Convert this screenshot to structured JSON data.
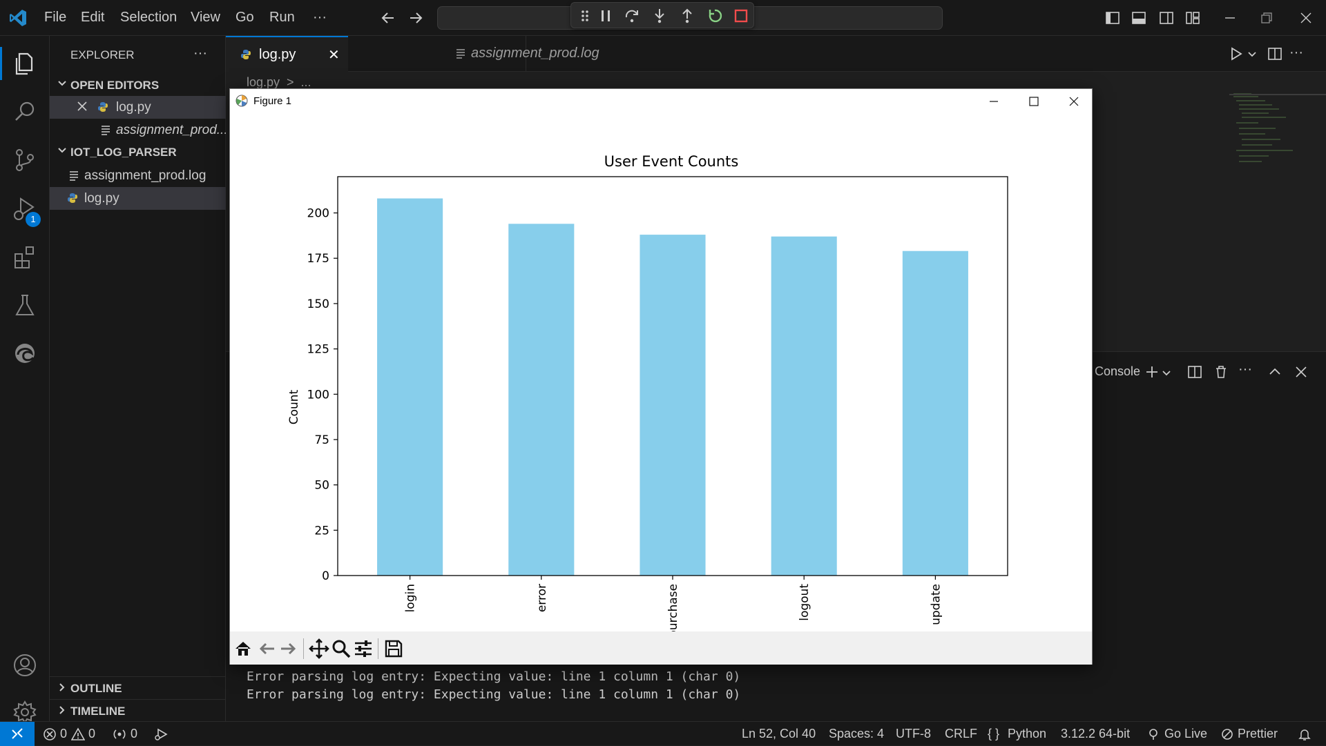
{
  "menu": [
    "File",
    "Edit",
    "Selection",
    "View",
    "Go",
    "Run",
    "···"
  ],
  "activity_badge": "1",
  "sidebar": {
    "title": "EXPLORER",
    "more": "···",
    "open_editors_title": "OPEN EDITORS",
    "open_editors": [
      "log.py",
      "assignment_prod..."
    ],
    "folder_title": "IOT_LOG_PARSER",
    "files": [
      "assignment_prod.log",
      "log.py"
    ],
    "outline": "OUTLINE",
    "timeline": "TIMELINE"
  },
  "tabs": [
    {
      "label": "log.py",
      "close": "✕"
    },
    {
      "label": "assignment_prod.log"
    }
  ],
  "breadcrumb": "log.py  >  ...",
  "panel": {
    "console_label": "Console",
    "lines": [
      "Error parsing log entry: Expecting value: line 1 column 1 (char 0)",
      "Error parsing log entry: Expecting value: line 1 column 1 (char 0)"
    ]
  },
  "figure": {
    "window_title": "Figure 1"
  },
  "chart_data": {
    "type": "bar",
    "title": "User Event Counts",
    "xlabel": "",
    "ylabel": "Count",
    "categories": [
      "login",
      "error",
      "purchase",
      "logout",
      "update"
    ],
    "values": [
      208,
      194,
      188,
      187,
      179
    ],
    "ylim": [
      0,
      220
    ],
    "yticks": [
      0,
      25,
      50,
      75,
      100,
      125,
      150,
      175,
      200
    ],
    "bar_color": "#87ceeb",
    "grid": false
  },
  "status": {
    "errors": "0",
    "warnings": "0",
    "ports": "0",
    "position": "Ln 52, Col 40",
    "spaces": "Spaces: 4",
    "encoding": "UTF-8",
    "eol": "CRLF",
    "language": "Python",
    "interpreter": "3.12.2 64-bit",
    "golive": "Go Live",
    "prettier": "Prettier"
  },
  "colors": {
    "accent": "#0078d4",
    "brand": "#2489ca",
    "restart_green": "#89d185",
    "stop_red": "#f14c4c"
  }
}
